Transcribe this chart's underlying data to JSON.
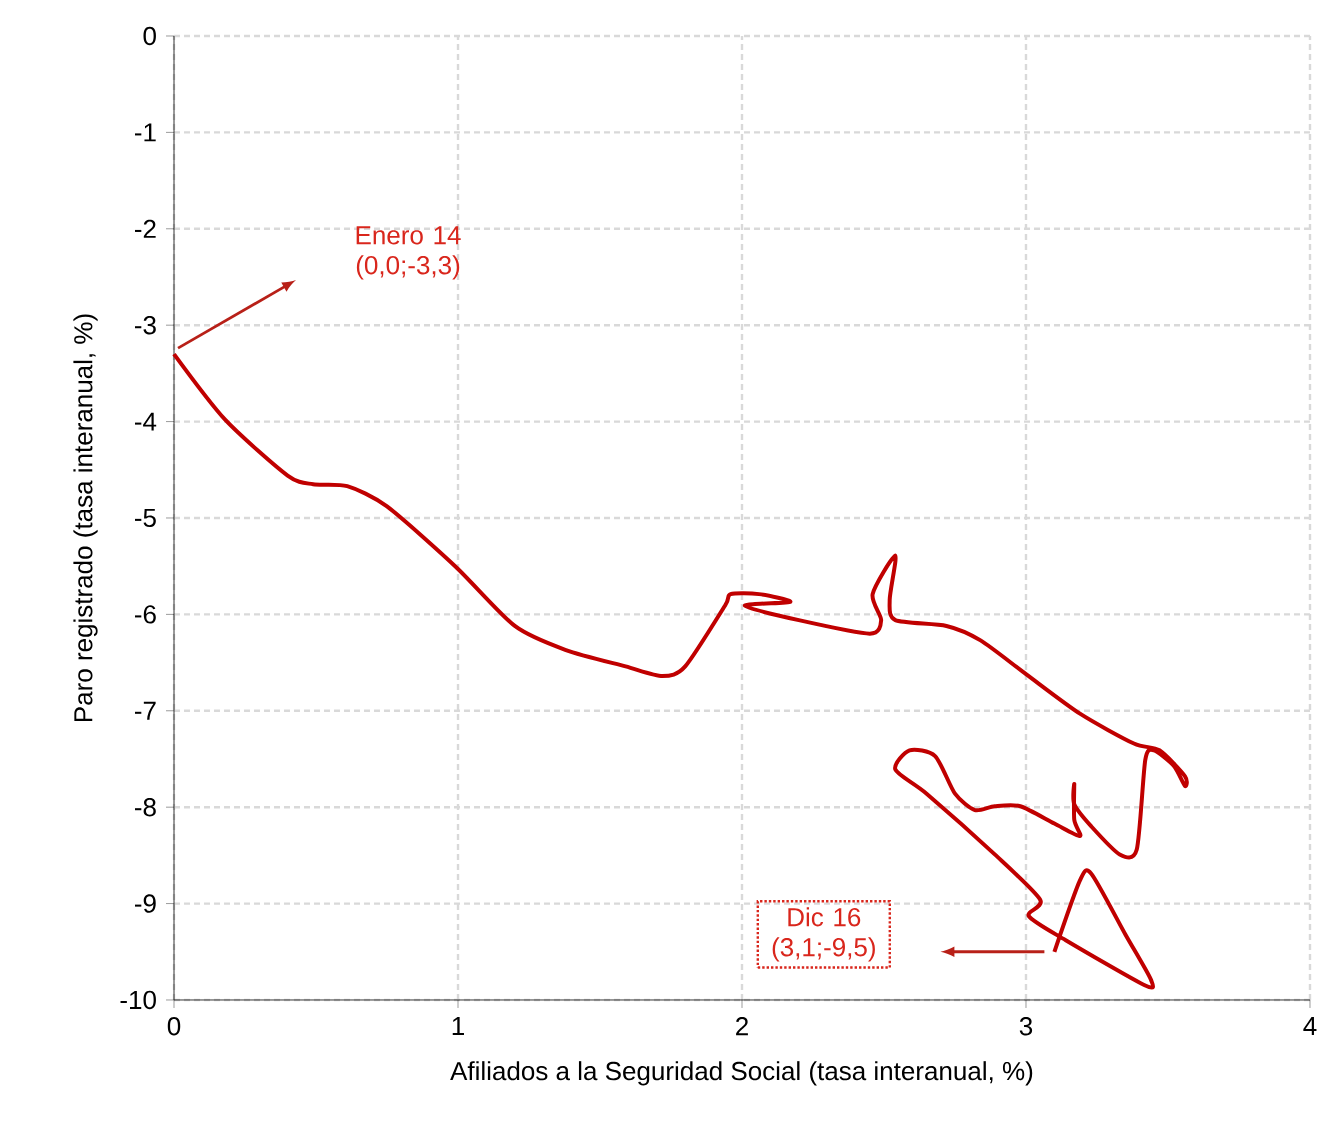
{
  "chart_data": {
    "type": "line",
    "xlabel": "Afiliados a la Seguridad Social (tasa interanual, %)",
    "ylabel": "Paro registrado (tasa interanual, %)",
    "xlim": [
      0,
      4
    ],
    "xticks": [
      0,
      1,
      2,
      3,
      4
    ],
    "ylim": [
      -10,
      0
    ],
    "yticks": [
      -10,
      -9,
      -8,
      -7,
      -6,
      -5,
      -4,
      -3,
      -2,
      -1,
      0
    ],
    "grid": true,
    "marker": "none",
    "line_style": "solid",
    "series": [
      {
        "color": "#c00000",
        "x": [
          0.0,
          0.18,
          0.4,
          0.49,
          0.61,
          0.75,
          0.99,
          1.2,
          1.38,
          1.59,
          1.72,
          1.8,
          1.94,
          1.96,
          2.06,
          2.17,
          2.01,
          2.2,
          2.45,
          2.49,
          2.46,
          2.54,
          2.52,
          2.54,
          2.72,
          2.84,
          3.0,
          3.19,
          3.38,
          3.47,
          3.56,
          3.56,
          3.52,
          3.45,
          3.42,
          3.39,
          3.33,
          3.23,
          3.17,
          3.17,
          3.17,
          3.19,
          3.1,
          2.98,
          2.89,
          2.82,
          2.75,
          2.68,
          2.59,
          2.54,
          2.65,
          2.89,
          3.05,
          3.01,
          3.14,
          3.42,
          3.44,
          3.35,
          3.23,
          3.19,
          3.1
        ],
        "values": [
          -3.3,
          -3.98,
          -4.56,
          -4.65,
          -4.67,
          -4.88,
          -5.5,
          -6.12,
          -6.37,
          -6.54,
          -6.64,
          -6.54,
          -5.91,
          -5.79,
          -5.79,
          -5.87,
          -5.91,
          -6.06,
          -6.2,
          -6.06,
          -5.79,
          -5.39,
          -5.85,
          -6.06,
          -6.12,
          -6.27,
          -6.62,
          -7.03,
          -7.34,
          -7.41,
          -7.68,
          -7.78,
          -7.57,
          -7.41,
          -7.51,
          -8.44,
          -8.49,
          -8.2,
          -7.97,
          -7.76,
          -8.13,
          -8.3,
          -8.17,
          -7.99,
          -7.99,
          -8.03,
          -7.86,
          -7.47,
          -7.41,
          -7.61,
          -7.86,
          -8.49,
          -8.96,
          -9.13,
          -9.38,
          -9.85,
          -9.79,
          -9.32,
          -8.69,
          -8.76,
          -9.5
        ]
      }
    ],
    "annotations": [
      "Enero 14 (0,0;-3,3)",
      "Dic 16 (3,1;-9,5)"
    ]
  }
}
